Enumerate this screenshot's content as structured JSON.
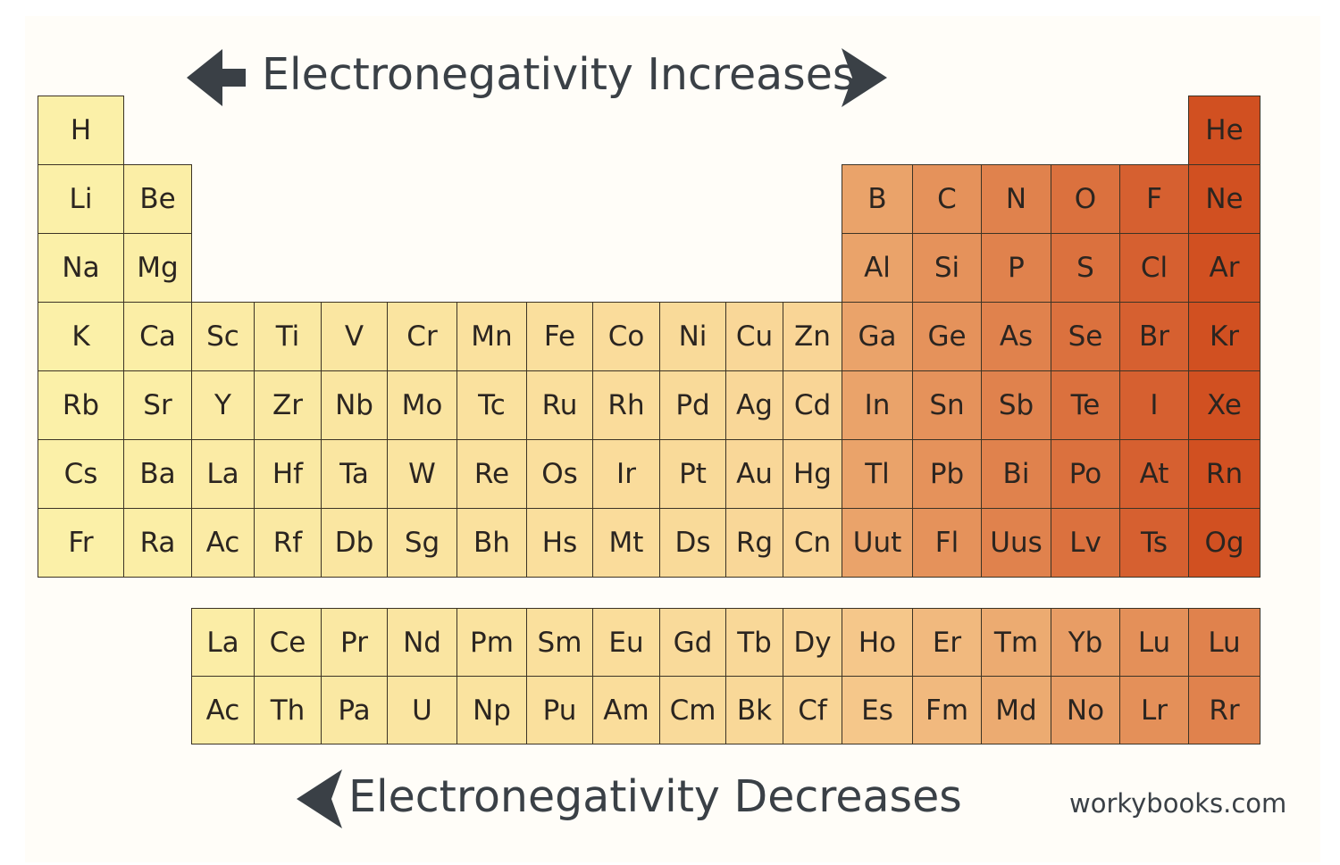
{
  "headings": {
    "top": "Electronegativity Increases",
    "bottom": "Electronegativity Decreases"
  },
  "website": "workybooks.com",
  "icons": {
    "top_left": "left-arrow-icon",
    "top_right": "right-chevron-arrow-icon",
    "bottom_left": "left-chevron-arrow-icon"
  },
  "colors": {
    "gradient_start": "#fbf0a8",
    "gradient_mid": "#f9d596",
    "gradient_end": "#cf4a1c",
    "text": "#3a4046",
    "border": "#3c3325"
  },
  "main_table": [
    [
      "H",
      "",
      "",
      "",
      "",
      "",
      "",
      "",
      "",
      "",
      "",
      "",
      "",
      "",
      "",
      "",
      "",
      "He"
    ],
    [
      "Li",
      "Be",
      "",
      "",
      "",
      "",
      "",
      "",
      "",
      "",
      "",
      "",
      "B",
      "C",
      "N",
      "O",
      "F",
      "Ne"
    ],
    [
      "Na",
      "Mg",
      "",
      "",
      "",
      "",
      "",
      "",
      "",
      "",
      "",
      "",
      "Al",
      "Si",
      "P",
      "S",
      "Cl",
      "Ar"
    ],
    [
      "K",
      "Ca",
      "Sc",
      "Ti",
      "V",
      "Cr",
      "Mn",
      "Fe",
      "Co",
      "Ni",
      "Cu",
      "Zn",
      "Ga",
      "Ge",
      "As",
      "Se",
      "Br",
      "Kr"
    ],
    [
      "Rb",
      "Sr",
      "Y",
      "Zr",
      "Nb",
      "Mo",
      "Tc",
      "Ru",
      "Rh",
      "Pd",
      "Ag",
      "Cd",
      "In",
      "Sn",
      "Sb",
      "Te",
      "I",
      "Xe"
    ],
    [
      "Cs",
      "Ba",
      "La",
      "Hf",
      "Ta",
      "W",
      "Re",
      "Os",
      "Ir",
      "Pt",
      "Au",
      "Hg",
      "Tl",
      "Pb",
      "Bi",
      "Po",
      "At",
      "Rn"
    ],
    [
      "Fr",
      "Ra",
      "Ac",
      "Rf",
      "Db",
      "Sg",
      "Bh",
      "Hs",
      "Mt",
      "Ds",
      "Rg",
      "Cn",
      "Uut",
      "Fl",
      "Uus",
      "Lv",
      "Ts",
      "Og"
    ]
  ],
  "f_block": [
    [
      "La",
      "Ce",
      "Pr",
      "Nd",
      "Pm",
      "Sm",
      "Eu",
      "Gd",
      "Tb",
      "Dy",
      "Ho",
      "Er",
      "Tm",
      "Yb",
      "Lu",
      "Lu"
    ],
    [
      "Ac",
      "Th",
      "Pa",
      "U",
      "Np",
      "Pu",
      "Am",
      "Cm",
      "Bk",
      "Cf",
      "Es",
      "Fm",
      "Md",
      "No",
      "Lr",
      "Rr"
    ]
  ]
}
